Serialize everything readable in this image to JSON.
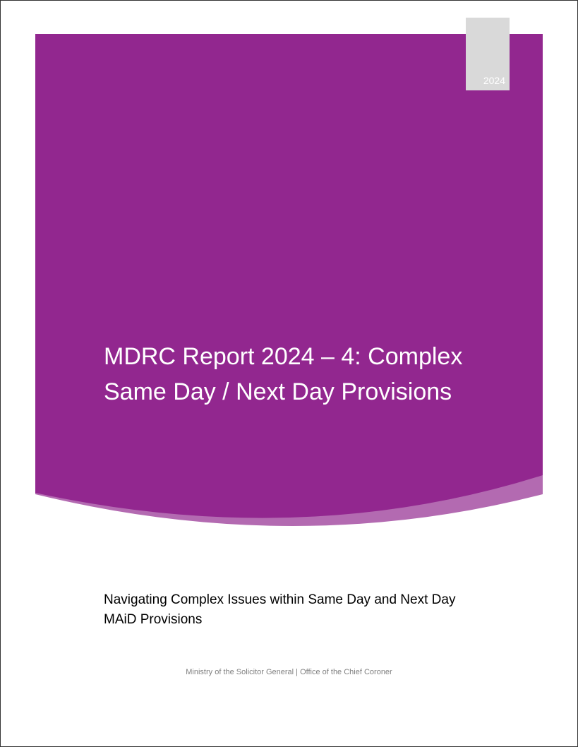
{
  "cover": {
    "year": "2024",
    "title": "MDRC Report 2024 – 4: Complex Same Day / Next Day Provisions",
    "subtitle": "Navigating Complex Issues within Same Day and Next Day MAiD Provisions",
    "footer": "Ministry of the Solicitor General | Office of the Chief Coroner"
  },
  "colors": {
    "primary": "#92278f",
    "accent": "#b36ab1",
    "year_box": "#d9d9d9"
  }
}
